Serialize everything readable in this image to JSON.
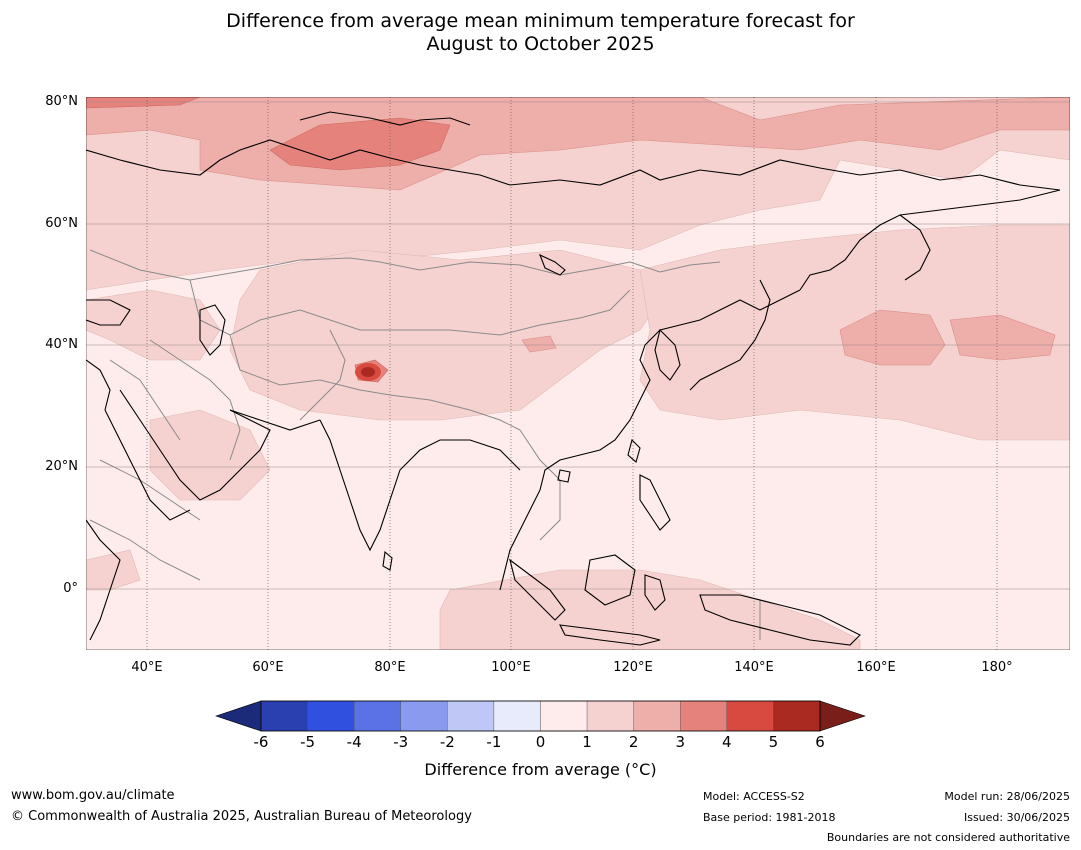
{
  "title": {
    "line1": "Difference from average mean minimum temperature forecast for",
    "line2": "August to October 2025"
  },
  "map": {
    "lat_labels": [
      "80°N",
      "60°N",
      "40°N",
      "20°N",
      "0°"
    ],
    "lon_labels": [
      "40°E",
      "60°E",
      "80°E",
      "100°E",
      "120°E",
      "140°E",
      "160°E",
      "180°"
    ]
  },
  "legend": {
    "title": "Difference from average (°C)",
    "ticks": [
      "-6",
      "-5",
      "-4",
      "-3",
      "-2",
      "-1",
      "0",
      "1",
      "2",
      "3",
      "4",
      "5",
      "6"
    ],
    "colors": [
      "#1c2a7a",
      "#2a3fb0",
      "#3050e0",
      "#5a72e6",
      "#8a9aee",
      "#bfc7f6",
      "#e8ebfb",
      "#fdeceb",
      "#f5d2d0",
      "#eeaeaa",
      "#e6827c",
      "#d84a40",
      "#aa2a22",
      "#7a1e1a"
    ]
  },
  "footer": {
    "url": "www.bom.gov.au/climate",
    "copyright": "© Commonwealth of Australia 2025, Australian Bureau of Meteorology",
    "model": "Model: ACCESS-S2",
    "base_period": "Base period: 1981-2018",
    "model_run": "Model run: 28/06/2025",
    "issued": "Issued: 30/06/2025",
    "disclaimer": "Boundaries are not considered authoritative"
  }
}
